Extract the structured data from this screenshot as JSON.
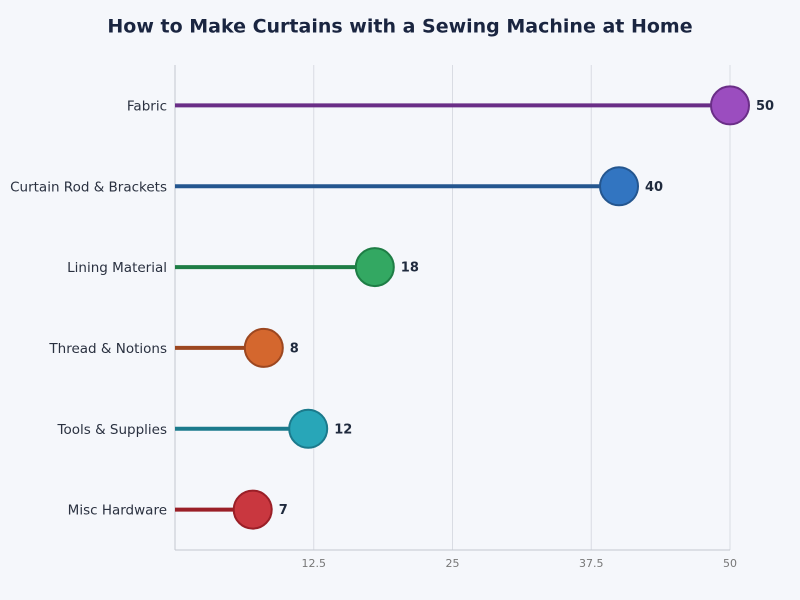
{
  "chart_data": {
    "type": "lollipop",
    "orientation": "horizontal",
    "title": "How to Make Curtains with a Sewing Machine at Home",
    "categories": [
      "Fabric",
      "Curtain Rod & Brackets",
      "Lining Material",
      "Thread & Notions",
      "Tools & Supplies",
      "Misc Hardware"
    ],
    "values": [
      50,
      40,
      18,
      8,
      12,
      7
    ],
    "colors": [
      "#9b4dbf",
      "#3275c1",
      "#33a862",
      "#d4672e",
      "#28a6b8",
      "#c9373f"
    ],
    "line_colors": [
      "#6a2e87",
      "#24568f",
      "#1e7d45",
      "#9c4720",
      "#1b7a8c",
      "#9a1f27"
    ],
    "xlim": [
      0,
      50
    ],
    "xticks": [
      12.5,
      25,
      37.5,
      50
    ],
    "grid": true
  }
}
